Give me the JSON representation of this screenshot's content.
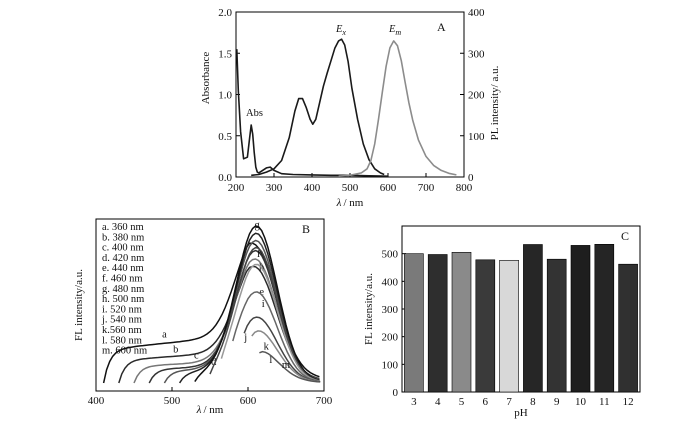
{
  "chart_data": [
    {
      "panel": "A",
      "type": "line",
      "xlabel_symbol": "λ",
      "xlabel_unit": "/ nm",
      "ylabel_left": "Absorbance",
      "ylabel_right": "PL intensity/ a.u.",
      "xlim": [
        200,
        800
      ],
      "ylim_left": [
        0,
        2.0
      ],
      "ylim_right": [
        0,
        400
      ],
      "xticks": [
        "200",
        "300",
        "400",
        "500",
        "600",
        "700",
        "800"
      ],
      "yticks_left": [
        "0.0",
        "0.5",
        "1.0",
        "1.5",
        "2.0"
      ],
      "yticks_right": [
        "0",
        "100",
        "200",
        "300",
        "400"
      ],
      "series": [
        {
          "name": "Abs",
          "axis": "left",
          "color": "#1a1a1a",
          "x": [
            202,
            206,
            212,
            220,
            230,
            236,
            240,
            244,
            248,
            252,
            256,
            260,
            270,
            280,
            290,
            300,
            320,
            350,
            400,
            450,
            500,
            550,
            600
          ],
          "y": [
            1.55,
            1.05,
            0.55,
            0.22,
            0.24,
            0.48,
            0.63,
            0.52,
            0.3,
            0.12,
            0.06,
            0.05,
            0.08,
            0.11,
            0.12,
            0.08,
            0.04,
            0.03,
            0.025,
            0.02,
            0.02,
            0.015,
            0.01
          ]
        },
        {
          "name": "Ex",
          "axis": "right",
          "color": "#1a1a1a",
          "x": [
            240,
            260,
            280,
            300,
            320,
            340,
            355,
            365,
            375,
            385,
            395,
            402,
            410,
            420,
            430,
            440,
            450,
            460,
            470,
            478,
            486,
            495,
            505,
            520,
            535,
            550,
            565,
            580,
            590
          ],
          "y": [
            4,
            6,
            12,
            20,
            40,
            95,
            160,
            190,
            190,
            168,
            140,
            128,
            140,
            180,
            220,
            252,
            282,
            312,
            330,
            334,
            320,
            280,
            215,
            140,
            80,
            42,
            20,
            10,
            6
          ]
        },
        {
          "name": "Em",
          "axis": "right",
          "color": "#8c8c8c",
          "x": [
            470,
            500,
            530,
            545,
            555,
            565,
            575,
            585,
            595,
            605,
            615,
            625,
            635,
            645,
            655,
            665,
            680,
            700,
            720,
            740,
            760,
            780
          ],
          "y": [
            2,
            4,
            10,
            20,
            40,
            80,
            140,
            205,
            268,
            313,
            330,
            318,
            282,
            230,
            180,
            138,
            90,
            50,
            28,
            16,
            9,
            5
          ]
        }
      ],
      "labels": {
        "abs": "Abs",
        "ex_main": "E",
        "ex_sub": "x",
        "em_main": "E",
        "em_sub": "m",
        "panel": "A"
      }
    },
    {
      "panel": "B",
      "type": "line",
      "xlabel_symbol": "λ",
      "xlabel_unit": "/ nm",
      "ylabel": "FL intensity/a.u.",
      "xlim": [
        400,
        700
      ],
      "ylim": [
        0,
        1
      ],
      "xticks": [
        "400",
        "500",
        "600",
        "700"
      ],
      "legend": [
        "a. 360 nm",
        "b. 380 nm",
        "c. 400 nm",
        "d. 420 nm",
        "e. 440 nm",
        "f. 460 nm",
        "g. 480 nm",
        "h. 500 nm",
        "i. 520 nm",
        "j. 540 nm",
        "k.560 nm",
        "l. 580 nm",
        "m. 600 nm"
      ],
      "series": [
        {
          "name": "a",
          "start": 410,
          "base": 0.22,
          "peak": 0.66,
          "color": "#111111"
        },
        {
          "name": "b",
          "start": 430,
          "base": 0.15,
          "peak": 0.6,
          "color": "#2a2a2a"
        },
        {
          "name": "c",
          "start": 450,
          "base": 0.11,
          "peak": 0.7,
          "color": "#777777"
        },
        {
          "name": "d",
          "start": 470,
          "base": 0.09,
          "peak": 0.78,
          "color": "#333333"
        },
        {
          "name": "e",
          "start": 490,
          "base": 0.08,
          "peak": 0.86,
          "color": "#555555"
        },
        {
          "name": "f",
          "start": 510,
          "base": 0.07,
          "peak": 0.92,
          "color": "#222222"
        },
        {
          "name": "g",
          "start": 530,
          "base": 0.06,
          "peak": 0.98,
          "color": "#111111"
        },
        {
          "name": "h",
          "start": 550,
          "base": 0.06,
          "peak": 0.84,
          "color": "#444444"
        },
        {
          "name": "i",
          "start": 565,
          "base": 0.05,
          "peak": 0.74,
          "color": "#999999"
        },
        {
          "name": "j",
          "start": 580,
          "base": 0.05,
          "peak": 0.56,
          "color": "#666666"
        },
        {
          "name": "k",
          "start": 595,
          "base": 0.05,
          "peak": 0.4,
          "color": "#444444"
        },
        {
          "name": "l",
          "start": 605,
          "base": 0.05,
          "peak": 0.32,
          "color": "#888888"
        },
        {
          "name": "m",
          "start": 615,
          "base": 0.05,
          "peak": 0.2,
          "color": "#555555"
        }
      ],
      "panel_label": "B"
    },
    {
      "panel": "C",
      "type": "bar",
      "xlabel": "pH",
      "ylabel": "FL intensity/a.u.",
      "ylim": [
        0,
        600
      ],
      "yticks": [
        "0",
        "100",
        "200",
        "300",
        "400",
        "500"
      ],
      "categories": [
        "3",
        "4",
        "5",
        "6",
        "7",
        "8",
        "9",
        "10",
        "11",
        "12"
      ],
      "values": [
        500,
        497,
        505,
        478,
        476,
        533,
        480,
        530,
        534,
        462
      ],
      "colors": [
        "#7a7a7a",
        "#2e2e2e",
        "#8a8a8a",
        "#3a3a3a",
        "#d8d8d8",
        "#262626",
        "#333333",
        "#1e1e1e",
        "#252525",
        "#303030"
      ],
      "panel_label": "C"
    }
  ]
}
